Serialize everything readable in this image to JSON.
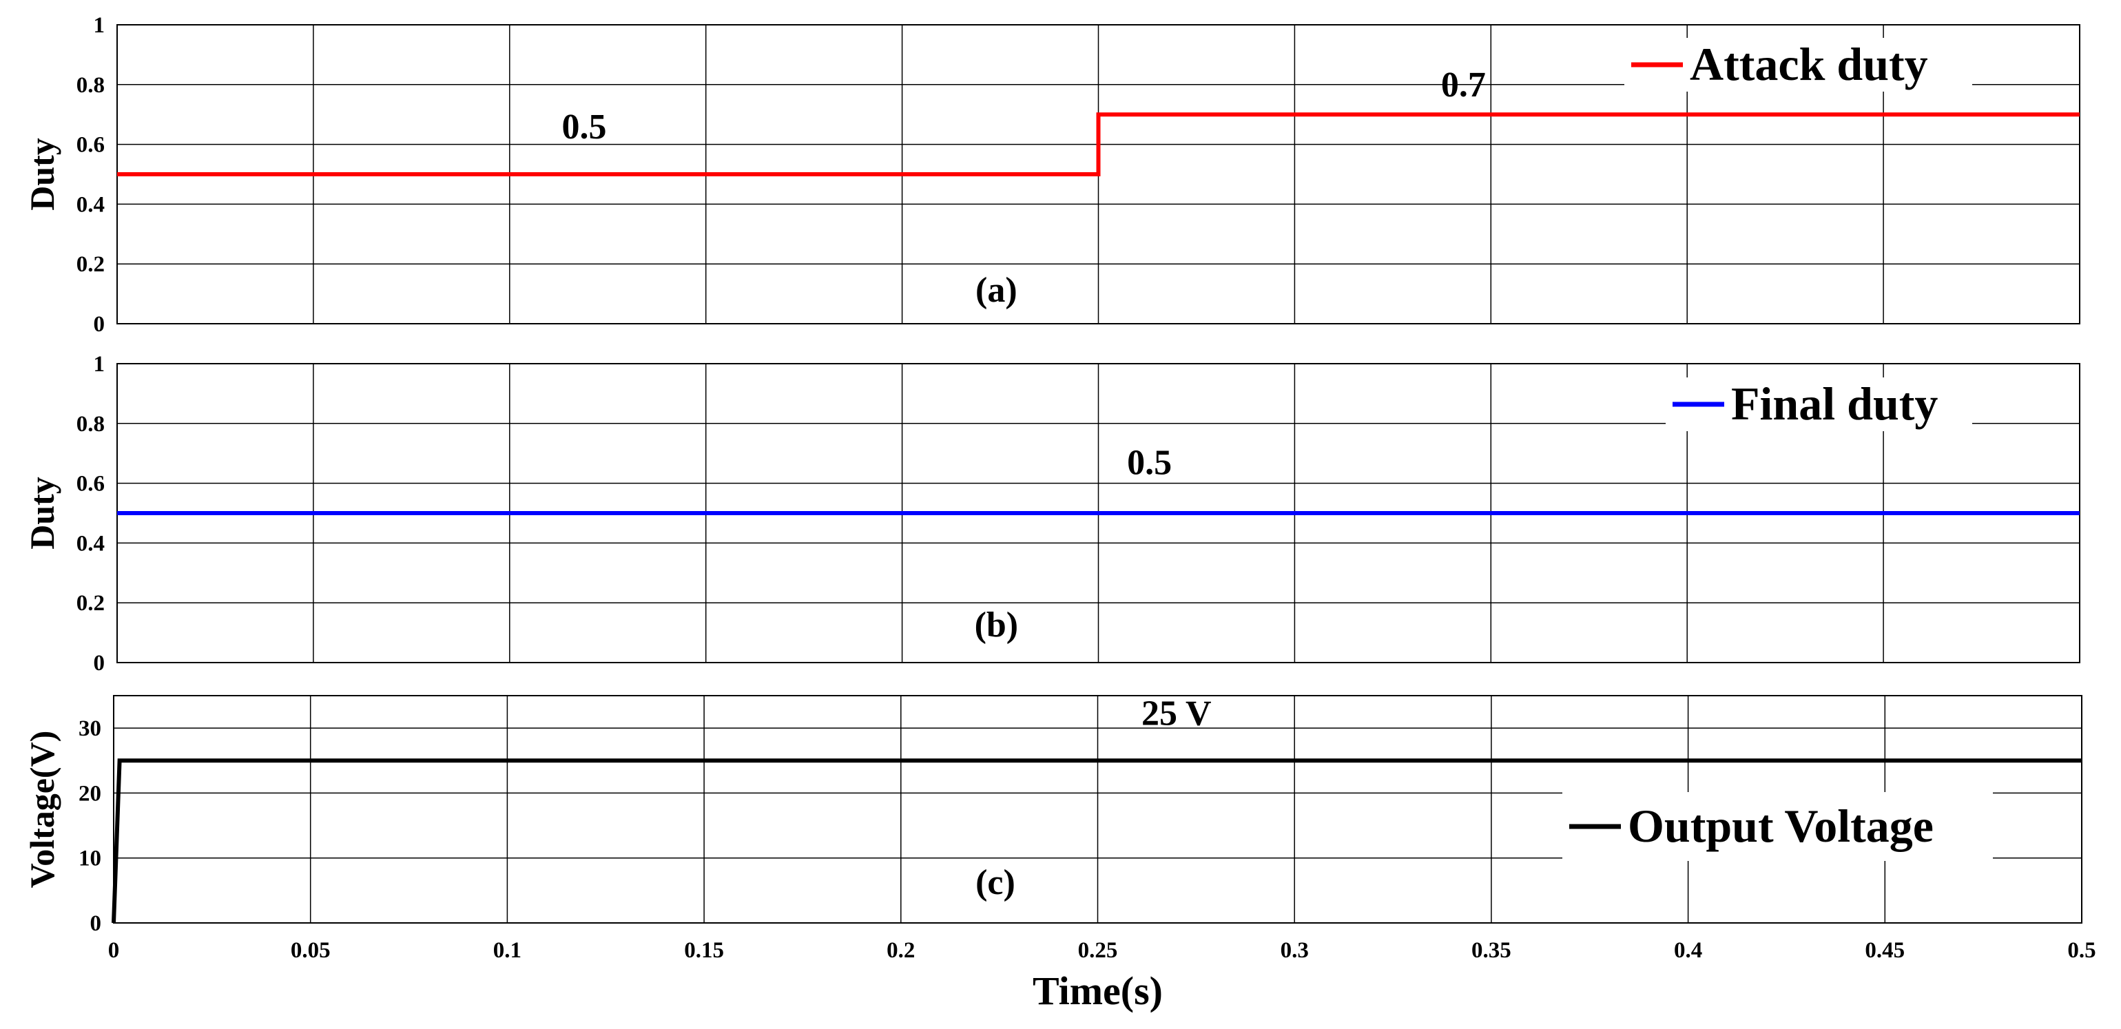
{
  "chart_data": [
    {
      "type": "line",
      "panel_label": "(a)",
      "ylabel": "Duty",
      "xlabel": "",
      "xlim": [
        0,
        0.5
      ],
      "ylim": [
        0,
        1
      ],
      "grid": true,
      "x_ticks": [
        "0",
        "0.05",
        "0.1",
        "0.15",
        "0.2",
        "0.25",
        "0.3",
        "0.35",
        "0.4",
        "0.45",
        "0.5"
      ],
      "y_ticks": [
        {
          "value": 0,
          "label": "0"
        },
        {
          "value": 0.2,
          "label": "0.2"
        },
        {
          "value": 0.4,
          "label": "0.4"
        },
        {
          "value": 0.6,
          "label": "0.6"
        },
        {
          "value": 0.8,
          "label": "0.8"
        },
        {
          "value": 1,
          "label": "1"
        }
      ],
      "legend_position": "top-right",
      "series": [
        {
          "name": "Attack duty",
          "color": "#ff0000",
          "x": [
            0,
            0.25,
            0.25,
            0.5
          ],
          "y": [
            0.5,
            0.5,
            0.7,
            0.7
          ]
        }
      ],
      "annotations": [
        {
          "text": "0.5",
          "x": 0.119,
          "y": 0.62
        },
        {
          "text": "0.7",
          "x": 0.343,
          "y": 0.76
        }
      ]
    },
    {
      "type": "line",
      "panel_label": "(b)",
      "ylabel": "Duty",
      "xlabel": "",
      "xlim": [
        0,
        0.5
      ],
      "ylim": [
        0,
        1
      ],
      "grid": true,
      "x_ticks": [
        "0",
        "0.05",
        "0.1",
        "0.15",
        "0.2",
        "0.25",
        "0.3",
        "0.35",
        "0.4",
        "0.45",
        "0.5"
      ],
      "y_ticks": [
        {
          "value": 0,
          "label": "0"
        },
        {
          "value": 0.2,
          "label": "0.2"
        },
        {
          "value": 0.4,
          "label": "0.4"
        },
        {
          "value": 0.6,
          "label": "0.6"
        },
        {
          "value": 0.8,
          "label": "0.8"
        },
        {
          "value": 1,
          "label": "1"
        }
      ],
      "legend_position": "top-right",
      "series": [
        {
          "name": "Final duty",
          "color": "#0000ff",
          "x": [
            0,
            0.5
          ],
          "y": [
            0.5,
            0.5
          ]
        }
      ],
      "annotations": [
        {
          "text": "0.5",
          "x": 0.263,
          "y": 0.63
        }
      ]
    },
    {
      "type": "line",
      "panel_label": "(c)",
      "ylabel": "Voltage(V)",
      "xlabel": "Time(s)",
      "xlim": [
        0,
        0.5
      ],
      "ylim": [
        0,
        35
      ],
      "grid": true,
      "x_ticks": [
        "0",
        "0.05",
        "0.1",
        "0.15",
        "0.2",
        "0.25",
        "0.3",
        "0.35",
        "0.4",
        "0.45",
        "0.5"
      ],
      "y_ticks": [
        {
          "value": 0,
          "label": "0"
        },
        {
          "value": 10,
          "label": "10"
        },
        {
          "value": 20,
          "label": "20"
        },
        {
          "value": 30,
          "label": "30"
        }
      ],
      "legend_position": "bottom-right",
      "series": [
        {
          "name": "Output Voltage",
          "color": "#000000",
          "x": [
            0,
            0.0015,
            0.005,
            0.5
          ],
          "y": [
            0,
            25,
            25,
            25
          ]
        }
      ],
      "annotations": [
        {
          "text": "25 V",
          "x": 0.27,
          "y": 30.5
        }
      ]
    }
  ]
}
